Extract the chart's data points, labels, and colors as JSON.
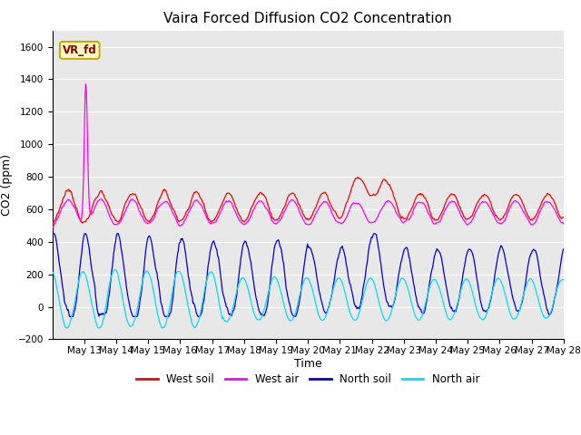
{
  "title": "Vaira Forced Diffusion CO2 Concentration",
  "xlabel": "Time",
  "ylabel": "CO2 (ppm)",
  "ylim": [
    -200,
    1700
  ],
  "yticks": [
    -200,
    0,
    200,
    400,
    600,
    800,
    1000,
    1200,
    1400,
    1600
  ],
  "x_start_day": 12,
  "x_end_day": 28,
  "xlim": [
    12.0,
    28.0
  ],
  "color_west_soil": "#ff0000",
  "color_west_air": "#ff00ff",
  "color_north_soil": "#0000dd",
  "color_north_air": "#00ddff",
  "legend_label_west_soil": "West soil",
  "legend_label_west_air": "West air",
  "legend_label_north_soil": "North soil",
  "legend_label_north_air": "North air",
  "annotation_text": "VR_fd",
  "annotation_color": "#8b0000",
  "annotation_bg": "#ffffcc",
  "annotation_edge": "#ccaa00",
  "plot_bg_color": "#e8e8e8",
  "grid_color": "#ffffff",
  "title_fontsize": 11,
  "axis_label_fontsize": 9,
  "tick_fontsize": 7.5
}
